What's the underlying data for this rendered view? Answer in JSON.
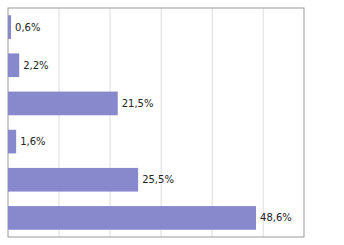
{
  "chart_data": {
    "type": "bar",
    "orientation": "horizontal",
    "categories": [
      null,
      null,
      null,
      null,
      null,
      null
    ],
    "values": [
      48.6,
      25.5,
      1.6,
      21.5,
      2.2,
      0.6
    ],
    "value_labels": [
      "48,6%",
      "25,5%",
      "1,6%",
      "21,5%",
      "2,2%",
      "0,6%"
    ],
    "data_labels": true,
    "color": "#8888cc",
    "xlim": [
      0,
      58
    ],
    "xticks": [
      10,
      20,
      30,
      40,
      50
    ],
    "grid": true,
    "tick_labels": false
  }
}
